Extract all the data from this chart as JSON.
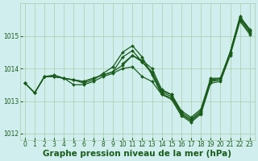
{
  "xlabel": "Graphe pression niveau de la mer (hPa)",
  "xlim": [
    -0.5,
    23.5
  ],
  "ylim": [
    1011.8,
    1016.0
  ],
  "yticks": [
    1012,
    1013,
    1014,
    1015
  ],
  "xticks": [
    0,
    1,
    2,
    3,
    4,
    5,
    6,
    7,
    8,
    9,
    10,
    11,
    12,
    13,
    14,
    15,
    16,
    17,
    18,
    19,
    20,
    21,
    22,
    23
  ],
  "bg_color": "#d0eeee",
  "grid_color": "#aaccaa",
  "line_color": "#1a5c1a",
  "series": [
    [
      1013.55,
      1013.25,
      1013.75,
      1013.75,
      1013.7,
      1013.65,
      1013.6,
      1013.7,
      1013.8,
      1013.9,
      1014.1,
      1014.4,
      1014.2,
      1013.9,
      1013.3,
      1013.2,
      1012.65,
      1012.45,
      1012.7,
      1013.65,
      1013.65,
      1014.5,
      1015.55,
      1015.15
    ],
    [
      1013.55,
      1013.25,
      1013.75,
      1013.75,
      1013.7,
      1013.65,
      1013.6,
      1013.7,
      1013.8,
      1013.9,
      1014.35,
      1014.55,
      1014.2,
      1013.85,
      1013.25,
      1013.15,
      1012.6,
      1012.4,
      1012.65,
      1013.6,
      1013.65,
      1014.45,
      1015.5,
      1015.1
    ],
    [
      1013.55,
      1013.25,
      1013.75,
      1013.75,
      1013.7,
      1013.5,
      1013.5,
      1013.6,
      1013.75,
      1013.85,
      1014.0,
      1014.05,
      1013.75,
      1013.6,
      1013.2,
      1013.05,
      1012.55,
      1012.35,
      1012.6,
      1013.55,
      1013.6,
      1014.4,
      1015.45,
      1015.05
    ],
    [
      1013.55,
      1013.25,
      1013.75,
      1013.8,
      1013.7,
      1013.65,
      1013.55,
      1013.65,
      1013.85,
      1014.05,
      1014.5,
      1014.7,
      1014.35,
      1013.8,
      1013.2,
      1013.1,
      1012.6,
      1012.4,
      1012.65,
      1013.65,
      1013.7,
      1014.5,
      1015.6,
      1015.2
    ],
    [
      1013.55,
      null,
      null,
      null,
      null,
      null,
      null,
      null,
      null,
      null,
      1014.15,
      1014.4,
      1014.25,
      1014.0,
      1013.35,
      1013.2,
      1012.7,
      1012.5,
      1012.75,
      1013.7,
      1013.7,
      1014.5,
      1015.55,
      1015.2
    ]
  ],
  "marker": "D",
  "markersize": 2.0,
  "linewidth": 0.9,
  "tick_labelsize": 5.5,
  "xlabel_fontsize": 7.5
}
